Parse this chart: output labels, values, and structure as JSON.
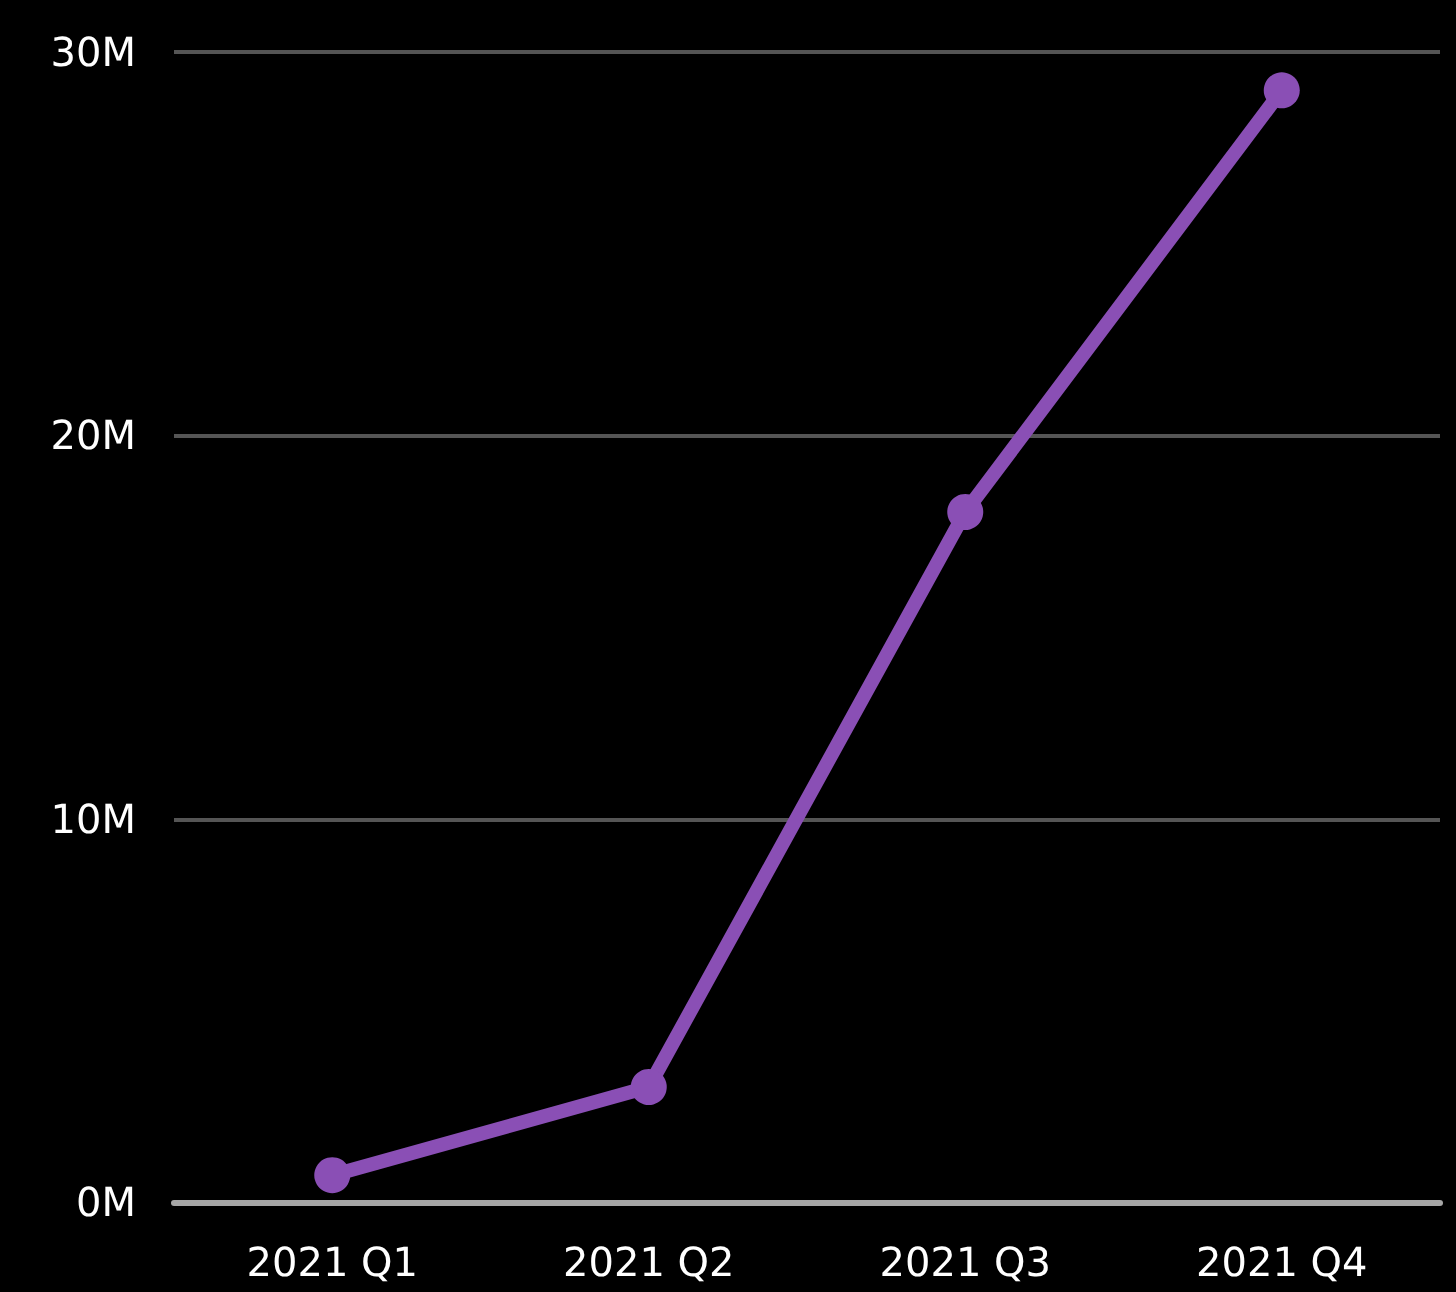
{
  "chart_data": {
    "type": "line",
    "categories": [
      "2021 Q1",
      "2021 Q2",
      "2021 Q3",
      "2021 Q4"
    ],
    "series": [
      {
        "color": "#8a4fb5",
        "values": [
          0.7,
          3,
          18,
          29
        ]
      }
    ],
    "ylim": [
      0,
      30
    ],
    "yticks": [
      {
        "value": 0,
        "label": "0M"
      },
      {
        "value": 10,
        "label": "10M"
      },
      {
        "value": 20,
        "label": "20M"
      },
      {
        "value": 30,
        "label": "30M"
      }
    ],
    "grid": "y",
    "marker": "circle"
  }
}
